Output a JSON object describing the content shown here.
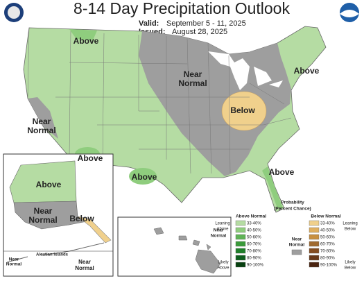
{
  "header": {
    "title": "8-14 Day Precipitation Outlook",
    "valid_label": "Valid:",
    "valid": "September 5 - 11, 2025",
    "issued_label": "Issued:",
    "issued": "August 28, 2025"
  },
  "regions": [
    {
      "lines": [
        "Above"
      ]
    },
    {
      "lines": [
        "Near",
        "Normal"
      ]
    },
    {
      "lines": [
        "Above"
      ]
    },
    {
      "lines": [
        "Near",
        "Normal"
      ]
    },
    {
      "lines": [
        "Below"
      ]
    },
    {
      "lines": [
        "Above"
      ]
    },
    {
      "lines": [
        "Above"
      ]
    },
    {
      "lines": [
        "Above"
      ]
    },
    {
      "lines": [
        "Above"
      ]
    },
    {
      "lines": [
        "Near",
        "Normal"
      ]
    },
    {
      "lines": [
        "Below"
      ]
    }
  ],
  "insets": {
    "aleutian_title": "Aleutian Islands",
    "aleutian_west": [
      "Near",
      "Normal"
    ],
    "aleutian_east": [
      "Near",
      "Normal"
    ],
    "hawaii": [
      "Near",
      "Normal"
    ]
  },
  "legend": {
    "title": [
      "Probability",
      "(Percent Chance)"
    ],
    "above": {
      "title": "Above Normal",
      "leaning": [
        "Leaning",
        "Above"
      ],
      "likely": [
        "Likely",
        "Above"
      ],
      "bins": [
        "33-40%",
        "40-50%",
        "50-60%",
        "60-70%",
        "70-80%",
        "80-90%",
        "90-100%"
      ],
      "colors": [
        "#b5dca3",
        "#8fcd7e",
        "#5fb356",
        "#3a9a3a",
        "#1f7f2a",
        "#0e5e1e",
        "#074010"
      ]
    },
    "near": {
      "title": [
        "Near",
        "Normal"
      ],
      "color": "#9e9e9e"
    },
    "below": {
      "title": "Below Normal",
      "leaning": [
        "Leaning",
        "Below"
      ],
      "likely": [
        "Likely",
        "Below"
      ],
      "bins": [
        "33-40%",
        "40-50%",
        "50-60%",
        "60-70%",
        "70-80%",
        "80-90%",
        "90-100%"
      ],
      "colors": [
        "#f0d08c",
        "#e0b060",
        "#c89040",
        "#a06a30",
        "#844c20",
        "#683818",
        "#4a2410"
      ]
    }
  }
}
